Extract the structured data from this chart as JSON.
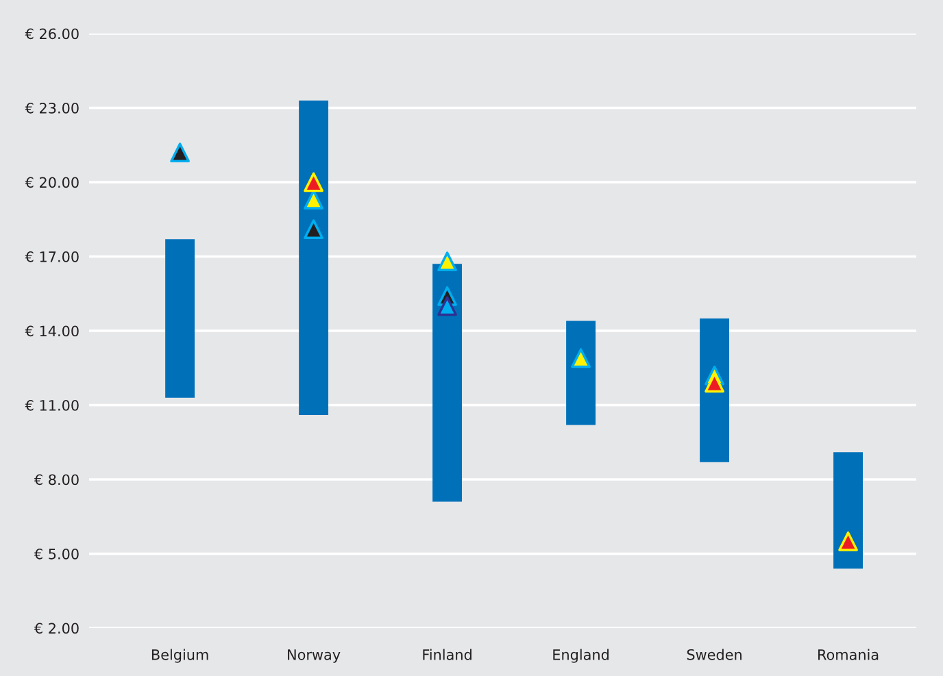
{
  "chart_data": {
    "type": "bar",
    "categories": [
      "Belgium",
      "Norway",
      "Finland",
      "England",
      "Sweden",
      "Romania"
    ],
    "series": [
      {
        "color": "#0071b9",
        "base": [
          11.3,
          10.6,
          7.1,
          10.2,
          8.7,
          4.4
        ],
        "values": [
          6.4,
          12.7,
          9.6,
          4.2,
          5.8,
          4.7
        ]
      },
      {
        "type": "scatter",
        "color": "#fff200",
        "values": [
          null,
          19.3,
          16.8,
          12.9,
          12.2,
          null
        ]
      },
      {
        "type": "scatter",
        "color": "#ed1c24",
        "values": [
          null,
          20.0,
          null,
          null,
          11.9,
          5.5
        ]
      },
      {
        "type": "scatter",
        "color": "#231f20",
        "values": [
          21.2,
          18.1,
          15.4,
          null,
          null,
          null
        ]
      },
      {
        "type": "scatter",
        "color": "#00aeef",
        "values": [
          null,
          null,
          15.0,
          null,
          null,
          null
        ]
      }
    ],
    "ylim": [
      2,
      26
    ],
    "yticks": [
      {
        "value": 2,
        "label": "€ 2.00"
      },
      {
        "value": 5,
        "label": "€ 5.00"
      },
      {
        "value": 8,
        "label": "€ 8.00"
      },
      {
        "value": 11,
        "label": "€ 11.00"
      },
      {
        "value": 14,
        "label": "€ 14.00"
      },
      {
        "value": 17,
        "label": "€ 17.00"
      },
      {
        "value": 20,
        "label": "€ 20.00"
      },
      {
        "value": 23,
        "label": "€ 23.00"
      },
      {
        "value": 26,
        "label": "€ 26.00"
      }
    ],
    "grid": "y",
    "marker": "triangle"
  }
}
